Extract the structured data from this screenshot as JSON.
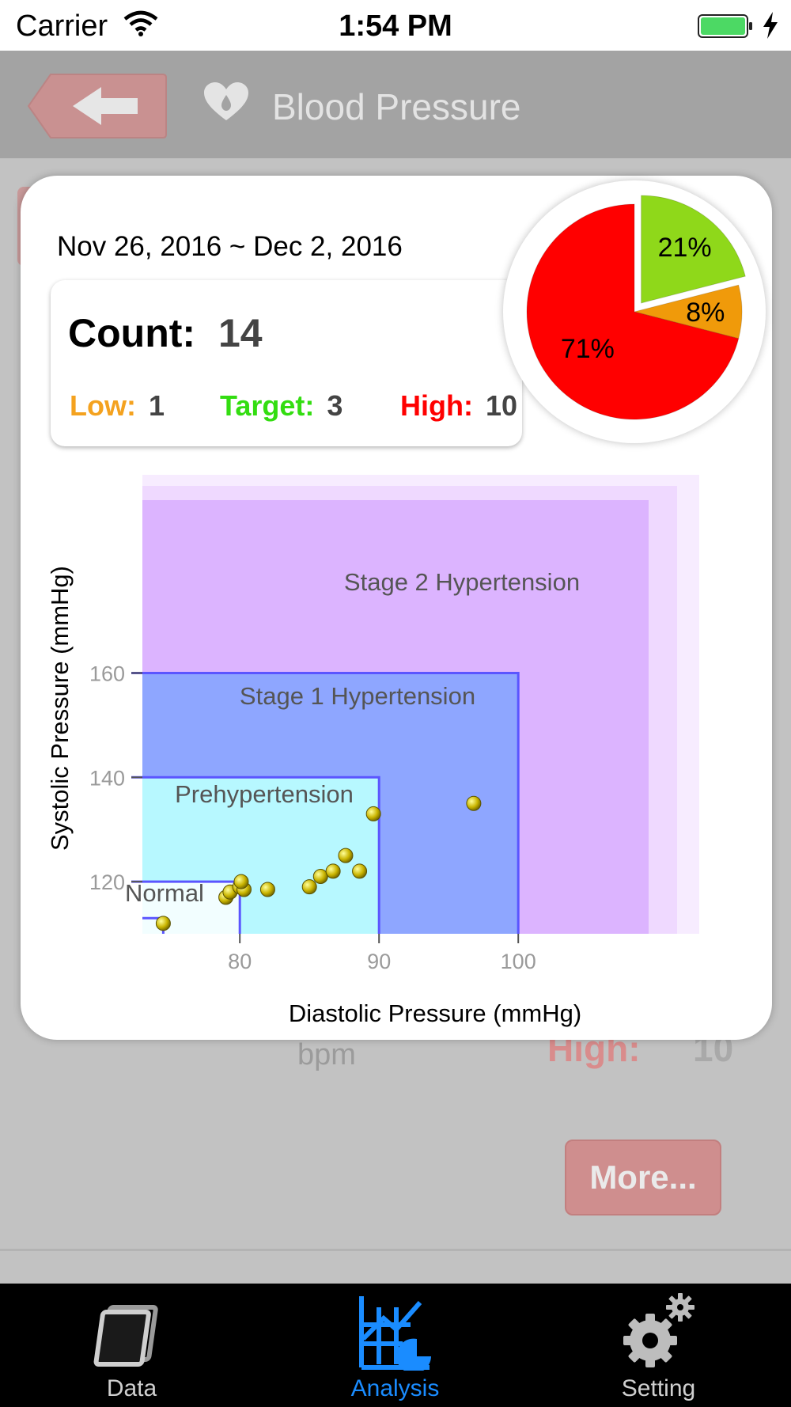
{
  "status_bar": {
    "carrier": "Carrier",
    "time": "1:54 PM"
  },
  "nav": {
    "title": "Blood Pressure"
  },
  "background": {
    "bpm": "bpm",
    "high_label": "High:",
    "high_value": "10",
    "more_button": "More..."
  },
  "popup": {
    "date_range": "Nov 26, 2016 ~ Dec 2, 2016",
    "count_label": "Count:",
    "count_value": "14",
    "low_label": "Low:",
    "low_value": "1",
    "target_label": "Target:",
    "target_value": "3",
    "high_label": "High:",
    "high_value": "10"
  },
  "colors": {
    "low": "#f4a21f",
    "target": "#33dd11",
    "high": "#ff0000",
    "tab_active": "#1a8cff",
    "tab_inactive": "#cfcfcf"
  },
  "chart_data": [
    {
      "type": "pie",
      "slices": [
        {
          "label": "21%",
          "value": 21,
          "color": "#8fd81a",
          "exploded": true
        },
        {
          "label": "8%",
          "value": 8,
          "color": "#f09a0a"
        },
        {
          "label": "71%",
          "value": 71,
          "color": "#ff0000"
        }
      ]
    },
    {
      "type": "scatter",
      "xlabel": "Diastolic Pressure (mmHg)",
      "ylabel": "Systolic Pressure (mmHg)",
      "xlim": [
        73,
        113
      ],
      "ylim": [
        110,
        198
      ],
      "xticks": [
        80,
        90,
        100
      ],
      "yticks": [
        120,
        140,
        160
      ],
      "zones": [
        {
          "label": "Stage 2 Hypertension",
          "x_max": 113,
          "y_max": 198
        },
        {
          "label": "Stage 1 Hypertension",
          "x_max": 100,
          "y_max": 160
        },
        {
          "label": "Prehypertension",
          "x_max": 90,
          "y_max": 140
        },
        {
          "label": "Normal",
          "x_max": 80,
          "y_max": 120
        }
      ],
      "points": [
        {
          "x": 74.5,
          "y": 112
        },
        {
          "x": 79,
          "y": 117
        },
        {
          "x": 79.3,
          "y": 118
        },
        {
          "x": 80,
          "y": 119
        },
        {
          "x": 80.3,
          "y": 118.5
        },
        {
          "x": 80.1,
          "y": 120
        },
        {
          "x": 82,
          "y": 118.5
        },
        {
          "x": 85,
          "y": 119
        },
        {
          "x": 85.8,
          "y": 121
        },
        {
          "x": 86.7,
          "y": 122
        },
        {
          "x": 87.6,
          "y": 125
        },
        {
          "x": 88.6,
          "y": 122
        },
        {
          "x": 89.6,
          "y": 133
        },
        {
          "x": 96.8,
          "y": 135
        }
      ]
    }
  ],
  "tabs": [
    {
      "label": "Data",
      "icon": "data-icon",
      "active": false
    },
    {
      "label": "Analysis",
      "icon": "analysis-icon",
      "active": true
    },
    {
      "label": "Setting",
      "icon": "gear-icon",
      "active": false
    }
  ]
}
